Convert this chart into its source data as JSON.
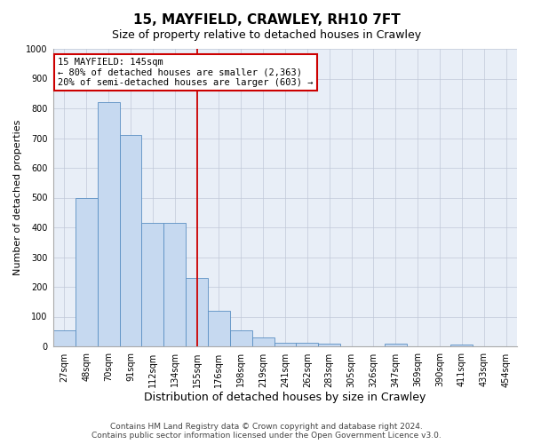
{
  "title": "15, MAYFIELD, CRAWLEY, RH10 7FT",
  "subtitle": "Size of property relative to detached houses in Crawley",
  "xlabel": "Distribution of detached houses by size in Crawley",
  "ylabel": "Number of detached properties",
  "categories": [
    "27sqm",
    "48sqm",
    "70sqm",
    "91sqm",
    "112sqm",
    "134sqm",
    "155sqm",
    "176sqm",
    "198sqm",
    "219sqm",
    "241sqm",
    "262sqm",
    "283sqm",
    "305sqm",
    "326sqm",
    "347sqm",
    "369sqm",
    "390sqm",
    "411sqm",
    "433sqm",
    "454sqm"
  ],
  "values": [
    55,
    500,
    820,
    710,
    415,
    415,
    230,
    120,
    55,
    30,
    12,
    12,
    10,
    0,
    0,
    8,
    0,
    0,
    5,
    0,
    0
  ],
  "bar_color": "#c6d9f0",
  "bar_edge_color": "#5a8fc3",
  "vline_x": 6.0,
  "vline_color": "#cc0000",
  "annotation_text": "15 MAYFIELD: 145sqm\n← 80% of detached houses are smaller (2,363)\n20% of semi-detached houses are larger (603) →",
  "annotation_box_color": "#ffffff",
  "annotation_box_edge": "#cc0000",
  "ylim": [
    0,
    1000
  ],
  "yticks": [
    0,
    100,
    200,
    300,
    400,
    500,
    600,
    700,
    800,
    900,
    1000
  ],
  "footer_line1": "Contains HM Land Registry data © Crown copyright and database right 2024.",
  "footer_line2": "Contains public sector information licensed under the Open Government Licence v3.0.",
  "bg_color": "#ffffff",
  "plot_bg_color": "#e8eef7",
  "grid_color": "#c0c8d8",
  "title_fontsize": 11,
  "subtitle_fontsize": 9,
  "xlabel_fontsize": 9,
  "ylabel_fontsize": 8,
  "tick_fontsize": 7,
  "annotation_fontsize": 7.5,
  "footer_fontsize": 6.5
}
